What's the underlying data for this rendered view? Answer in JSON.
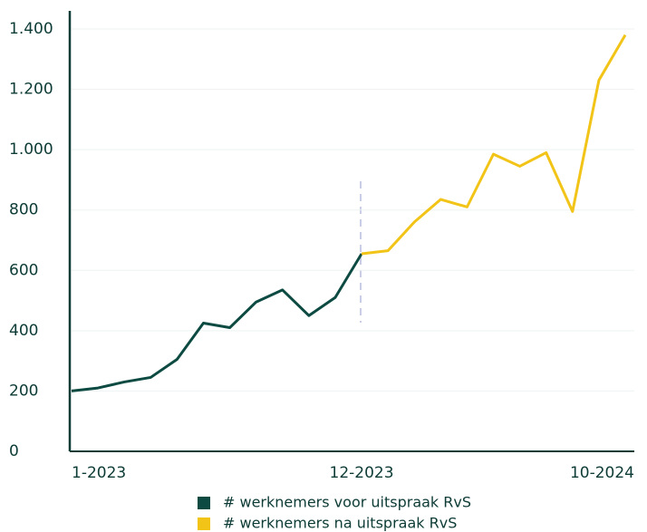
{
  "chart_data": {
    "type": "line",
    "categories": [
      "1-2023",
      null,
      null,
      null,
      null,
      null,
      null,
      null,
      null,
      null,
      null,
      "12-2023",
      null,
      null,
      null,
      null,
      null,
      null,
      null,
      null,
      null,
      "10-2024"
    ],
    "series": [
      {
        "name": "# werknemers voor uitspraak RvS",
        "color": "#0d4a42",
        "values": [
          200,
          210,
          230,
          245,
          305,
          425,
          410,
          495,
          535,
          450,
          510,
          655,
          null,
          null,
          null,
          null,
          null,
          null,
          null,
          null,
          null,
          null
        ]
      },
      {
        "name": "# werknemers na uitspraak RvS",
        "color": "#f2c418",
        "values": [
          null,
          null,
          null,
          null,
          null,
          null,
          null,
          null,
          null,
          null,
          null,
          655,
          665,
          760,
          835,
          810,
          985,
          945,
          990,
          795,
          1230,
          1380
        ]
      }
    ],
    "ylim": [
      0,
      1460
    ],
    "yticks": [
      0,
      200,
      400,
      600,
      800,
      {
        "value": 1000,
        "label": "1.000"
      },
      {
        "value": 1200,
        "label": "1.200"
      },
      {
        "value": 1400,
        "label": "1.400"
      }
    ],
    "grid": true
  }
}
